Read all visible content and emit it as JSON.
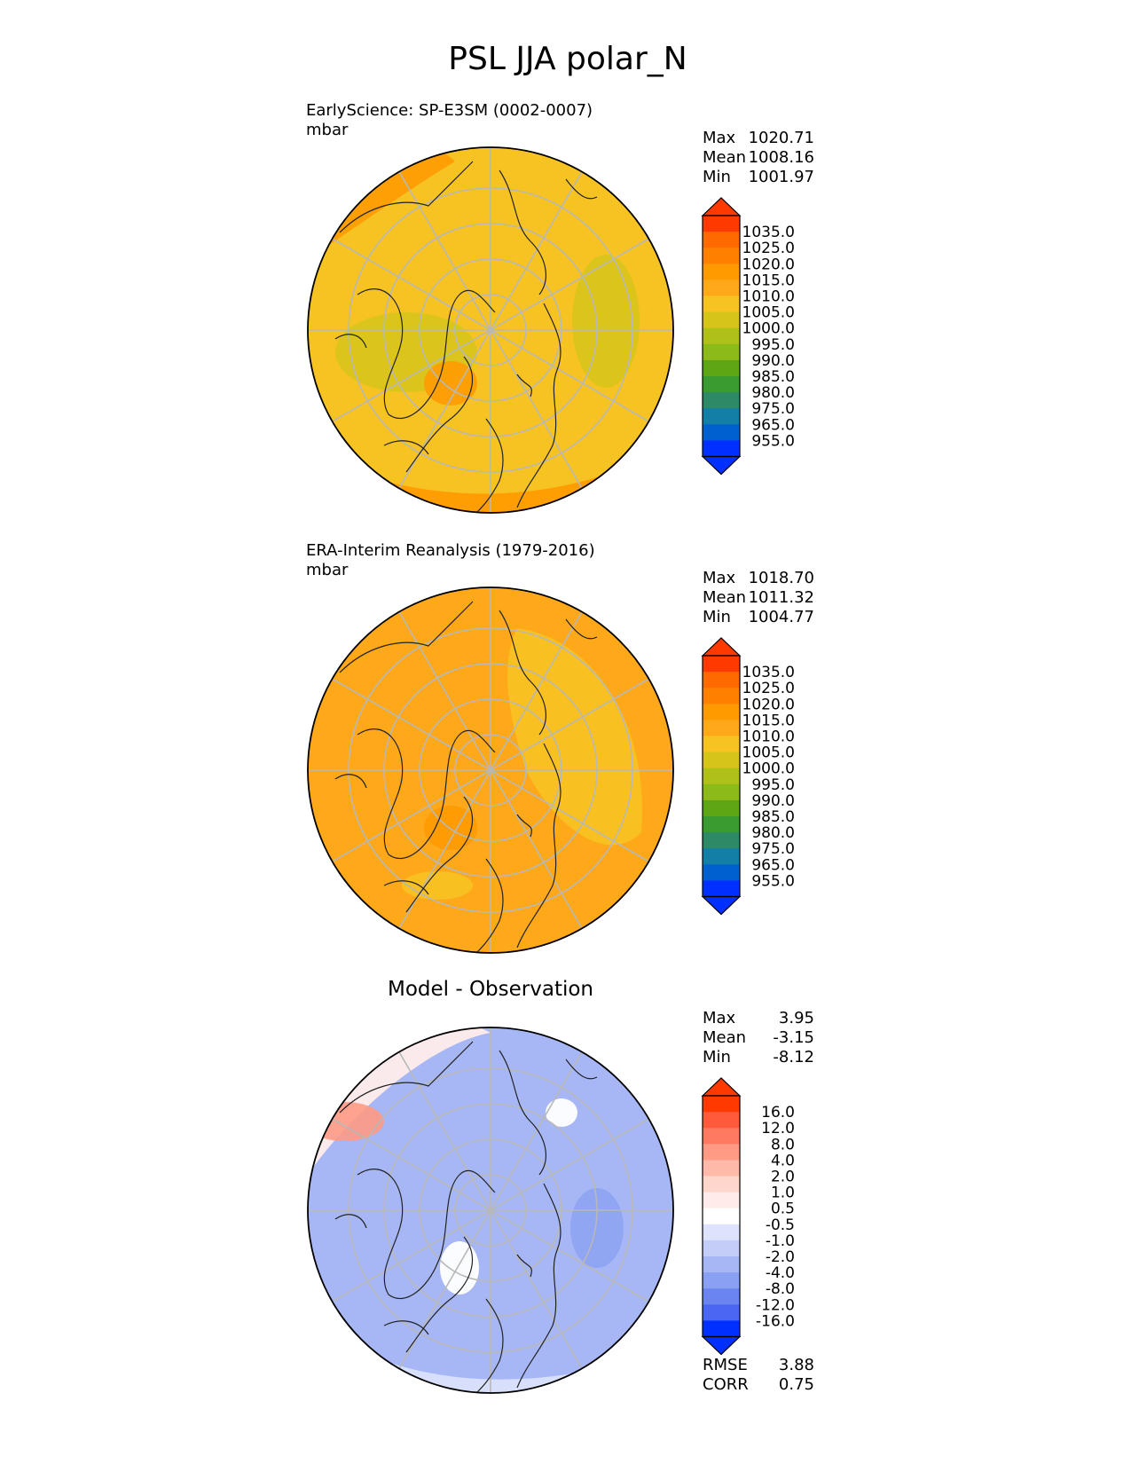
{
  "figure": {
    "title": "PSL JJA polar_N",
    "panels": [
      {
        "id": "model",
        "title": "EarlyScience: SP-E3SM (0002-0007)",
        "units": "mbar",
        "stats": [
          {
            "label": "Max",
            "value": "1020.71"
          },
          {
            "label": "Mean",
            "value": "1008.16"
          },
          {
            "label": "Min",
            "value": "1001.97"
          }
        ],
        "colorbar": {
          "labels": [
            "1035.0",
            "1025.0",
            "1020.0",
            "1015.0",
            "1010.0",
            "1005.0",
            "1000.0",
            "995.0",
            "990.0",
            "985.0",
            "980.0",
            "975.0",
            "965.0",
            "955.0"
          ],
          "colors_top_to_bottom": [
            "#ff3a00",
            "#ff6a00",
            "#ff8000",
            "#ff9a00",
            "#ffa81a",
            "#f7c322",
            "#d6c41a",
            "#b0c01a",
            "#8cba18",
            "#5ea614",
            "#3a9c30",
            "#2e8a66",
            "#137ea6",
            "#0060d0",
            "#0030ff"
          ],
          "extend_top": "#ff3a00",
          "extend_bottom": "#0030ff"
        },
        "map": {
          "base_color": "#f7c322",
          "rim_color": "#ff9a10"
        }
      },
      {
        "id": "obs",
        "title": "ERA-Interim Reanalysis (1979-2016)",
        "units": "mbar",
        "stats": [
          {
            "label": "Max",
            "value": "1018.70"
          },
          {
            "label": "Mean",
            "value": "1011.32"
          },
          {
            "label": "Min",
            "value": "1004.77"
          }
        ],
        "colorbar": {
          "labels": [
            "1035.0",
            "1025.0",
            "1020.0",
            "1015.0",
            "1010.0",
            "1005.0",
            "1000.0",
            "995.0",
            "990.0",
            "985.0",
            "980.0",
            "975.0",
            "965.0",
            "955.0"
          ],
          "colors_top_to_bottom": [
            "#ff3a00",
            "#ff6a00",
            "#ff8000",
            "#ff9a00",
            "#ffa81a",
            "#f7c322",
            "#d6c41a",
            "#b0c01a",
            "#8cba18",
            "#5ea614",
            "#3a9c30",
            "#2e8a66",
            "#137ea6",
            "#0060d0",
            "#0030ff"
          ],
          "extend_top": "#ff3a00",
          "extend_bottom": "#0030ff"
        },
        "map": {
          "base_color": "#ffa81a",
          "rim_color": "#ff9010"
        }
      },
      {
        "id": "diff",
        "title": "Model - Observation",
        "units": "",
        "stats": [
          {
            "label": "Max",
            "value": "3.95"
          },
          {
            "label": "Mean",
            "value": "-3.15"
          },
          {
            "label": "Min",
            "value": "-8.12"
          }
        ],
        "colorbar": {
          "labels": [
            "16.0",
            "12.0",
            "8.0",
            "4.0",
            "2.0",
            "1.0",
            "0.5",
            "-0.5",
            "-1.0",
            "-2.0",
            "-4.0",
            "-8.0",
            "-12.0",
            "-16.0"
          ],
          "colors_top_to_bottom": [
            "#ff3a00",
            "#ff5a3a",
            "#ff7a60",
            "#ff9a85",
            "#ffb9a8",
            "#ffd6cc",
            "#ffecea",
            "#ffffff",
            "#dde3fb",
            "#c3cdf8",
            "#a7b7f5",
            "#8aa0f2",
            "#6b85f0",
            "#4a66f2",
            "#0030ff"
          ],
          "extend_top": "#ff3a00",
          "extend_bottom": "#0030ff"
        },
        "map": {
          "base_color": "#a7b7f5",
          "rim_color": "#c3cdf8"
        },
        "metrics": [
          {
            "label": "RMSE",
            "value": "3.88"
          },
          {
            "label": "CORR",
            "value": "0.75"
          }
        ]
      }
    ]
  },
  "chart_data": [
    {
      "type": "heatmap",
      "projection": "north-polar-stereographic",
      "title": "EarlyScience: SP-E3SM (0002-0007)",
      "units": "mbar",
      "stats": {
        "max": 1020.71,
        "mean": 1008.16,
        "min": 1001.97
      },
      "levels": [
        955,
        965,
        975,
        980,
        985,
        990,
        995,
        1000,
        1005,
        1010,
        1015,
        1020,
        1025,
        1035
      ]
    },
    {
      "type": "heatmap",
      "projection": "north-polar-stereographic",
      "title": "ERA-Interim Reanalysis (1979-2016)",
      "units": "mbar",
      "stats": {
        "max": 1018.7,
        "mean": 1011.32,
        "min": 1004.77
      },
      "levels": [
        955,
        965,
        975,
        980,
        985,
        990,
        995,
        1000,
        1005,
        1010,
        1015,
        1020,
        1025,
        1035
      ]
    },
    {
      "type": "heatmap",
      "projection": "north-polar-stereographic",
      "title": "Model - Observation",
      "stats": {
        "max": 3.95,
        "mean": -3.15,
        "min": -8.12,
        "rmse": 3.88,
        "corr": 0.75
      },
      "levels": [
        -16,
        -12,
        -8,
        -4,
        -2,
        -1,
        -0.5,
        0.5,
        1,
        2,
        4,
        8,
        12,
        16
      ]
    }
  ]
}
